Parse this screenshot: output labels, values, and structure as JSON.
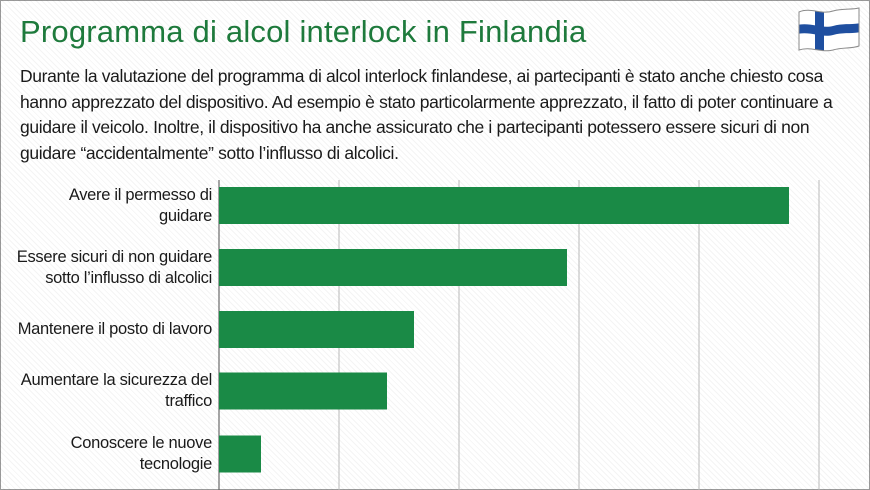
{
  "title": "Programma di alcol interlock in Finlandia",
  "description": "Durante la valutazione del programma di alcol interlock finlandese, ai partecipanti è stato anche chiesto cosa hanno apprezzato del dispositivo. Ad esempio è stato particolarmente apprezzato, il fatto di poter continuare a guidare il veicolo. Inoltre, il dispositivo ha anche assicurato che i partecipanti potessero essere sicuri di non guidare “accidentalmente” sotto l’influsso di alcolici.",
  "flag_icon": "finland-flag-icon",
  "colors": {
    "title": "#1e7a3c",
    "bar": "#1a8a46",
    "grid": "#b8b8b8",
    "flag_blue": "#1f4fa0"
  },
  "chart_data": {
    "type": "bar",
    "orientation": "horizontal",
    "title": "Programma di alcol interlock in Finlandia",
    "xlabel": "",
    "ylabel": "",
    "xlim": [
      0,
      100
    ],
    "grid": true,
    "categories": [
      "Avere il permesso di guidare",
      "Essere sicuri di non guidare sotto l’influsso di alcolici",
      "Mantenere il posto di lavoro",
      "Aumentare la sicurezza del traffico",
      "Conoscere le nuove tecnologie"
    ],
    "values": [
      95,
      58,
      32.5,
      28,
      7
    ]
  }
}
